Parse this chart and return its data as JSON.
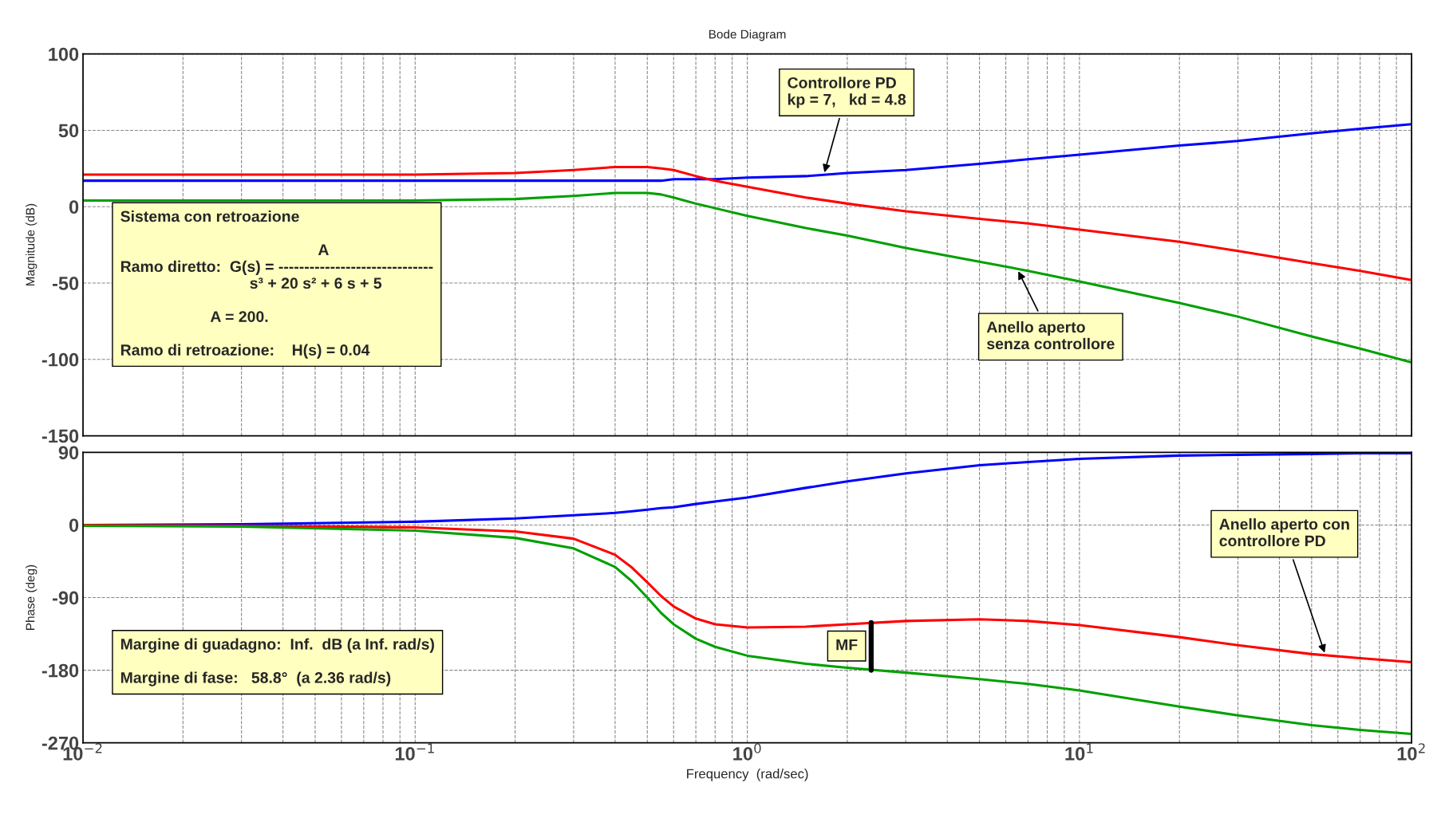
{
  "chart_data": [
    {
      "type": "line",
      "title": "Bode Diagram",
      "ylabel": "Magnitude (dB)",
      "log": "x",
      "grid": true,
      "tick_labels": "y",
      "x": [
        0.01,
        0.03,
        0.1,
        0.2,
        0.3,
        0.4,
        0.45,
        0.5,
        0.55,
        0.6,
        0.7,
        0.8,
        1,
        1.5,
        2,
        3,
        5,
        7,
        10,
        20,
        30,
        50,
        70,
        100
      ],
      "xlim": [
        0.01,
        100
      ],
      "xticks": [
        {
          "value": 0.01,
          "label": null
        },
        {
          "value": 0.1,
          "label": null
        },
        {
          "value": 1,
          "label": null
        },
        {
          "value": 10,
          "label": null
        },
        {
          "value": 100,
          "label": null
        }
      ],
      "ylim": [
        -150,
        100
      ],
      "yticks": [
        -150,
        -100,
        -50,
        0,
        50,
        100
      ],
      "series": [
        {
          "color": "#0000ff",
          "values": [
            17,
            17,
            17,
            17,
            17,
            17,
            17,
            17,
            17,
            18,
            18,
            18,
            19,
            20,
            22,
            24,
            28,
            31,
            34,
            40,
            43,
            48,
            51,
            54
          ]
        },
        {
          "color": "#ff0000",
          "values": [
            21,
            21,
            21,
            22,
            24,
            26,
            26,
            26,
            25,
            24,
            20,
            17,
            13,
            6,
            2,
            -3,
            -8,
            -11,
            -15,
            -23,
            -29,
            -37,
            -42,
            -48
          ]
        },
        {
          "color": "#00a000",
          "values": [
            4,
            4,
            4,
            5,
            7,
            9,
            9,
            9,
            8,
            6,
            2,
            -1,
            -6,
            -14,
            -19,
            -27,
            -36,
            -42,
            -49,
            -63,
            -72,
            -85,
            -93,
            -102
          ]
        }
      ],
      "annotations": [
        "Sistema con retroazione\n\n                                              A\nRamo diretto:  G(s) = ------------------------------\n                              s³ + 20 s² + 6 s + 5\n\n                     A = 200.\n\nRamo di retroazione:    H(s) = 0.04",
        {
          "text": "Controllore PD\nkp = 7,   kd = 4.8",
          "x": 1.7,
          "y": 21
        },
        {
          "text": "Anello aperto\nsenza controllore",
          "x": 6.5,
          "y": -41
        }
      ]
    },
    {
      "type": "line",
      "ylabel": "Phase (deg)",
      "xlabel": "Frequency  (rad/sec)",
      "log": "x",
      "grid": true,
      "x": [
        0.01,
        0.03,
        0.1,
        0.2,
        0.3,
        0.4,
        0.45,
        0.5,
        0.55,
        0.6,
        0.7,
        0.8,
        1,
        1.5,
        2,
        3,
        5,
        7,
        10,
        20,
        30,
        50,
        70,
        100
      ],
      "xlim": [
        0.01,
        100
      ],
      "xticks": [
        {
          "value": 0.01,
          "label": "10$^{−2}$"
        },
        {
          "value": 0.1,
          "label": "10$^{−1}$"
        },
        {
          "value": 1,
          "label": "10$^{0}$"
        },
        {
          "value": 10,
          "label": "10$^{1}$"
        },
        {
          "value": 100,
          "label": "10$^{2}$"
        }
      ],
      "ylim": [
        -270,
        90
      ],
      "yticks": [
        -270,
        -180,
        -90,
        0,
        90
      ],
      "series": [
        {
          "color": "#0000ff",
          "values": [
            0,
            1,
            4,
            8,
            12,
            15,
            17,
            19,
            21,
            22,
            26,
            29,
            34,
            46,
            54,
            64,
            74,
            78,
            82,
            86,
            87,
            88,
            89,
            89
          ]
        },
        {
          "color": "#ff0000",
          "values": [
            0,
            -1,
            -3,
            -8,
            -17,
            -37,
            -53,
            -71,
            -88,
            -101,
            -116,
            -123,
            -127,
            -126,
            -123,
            -119,
            -117,
            -119,
            -124,
            -139,
            -149,
            -160,
            -165,
            -170
          ]
        },
        {
          "color": "#00a000",
          "values": [
            -1,
            -2,
            -7,
            -16,
            -29,
            -52,
            -70,
            -90,
            -109,
            -123,
            -141,
            -151,
            -162,
            -172,
            -177,
            -183,
            -191,
            -197,
            -205,
            -225,
            -236,
            -248,
            -254,
            -259
          ]
        },
        {
          "color": "#000000",
          "x": [
            2.36,
            2.36
          ],
          "values": [
            -180,
            -121
          ]
        }
      ],
      "annotations": [
        {
          "text": "Anello aperto con\ncontrollore PD",
          "x": 55,
          "y": -161
        },
        "Margine di guadagno:  Inf.  dB (a Inf. rad/s)\n\nMargine di fase:   58.8°  (a 2.36 rad/s)",
        {
          "text": "MF",
          "x": 2.36,
          "y": -150
        }
      ]
    }
  ]
}
